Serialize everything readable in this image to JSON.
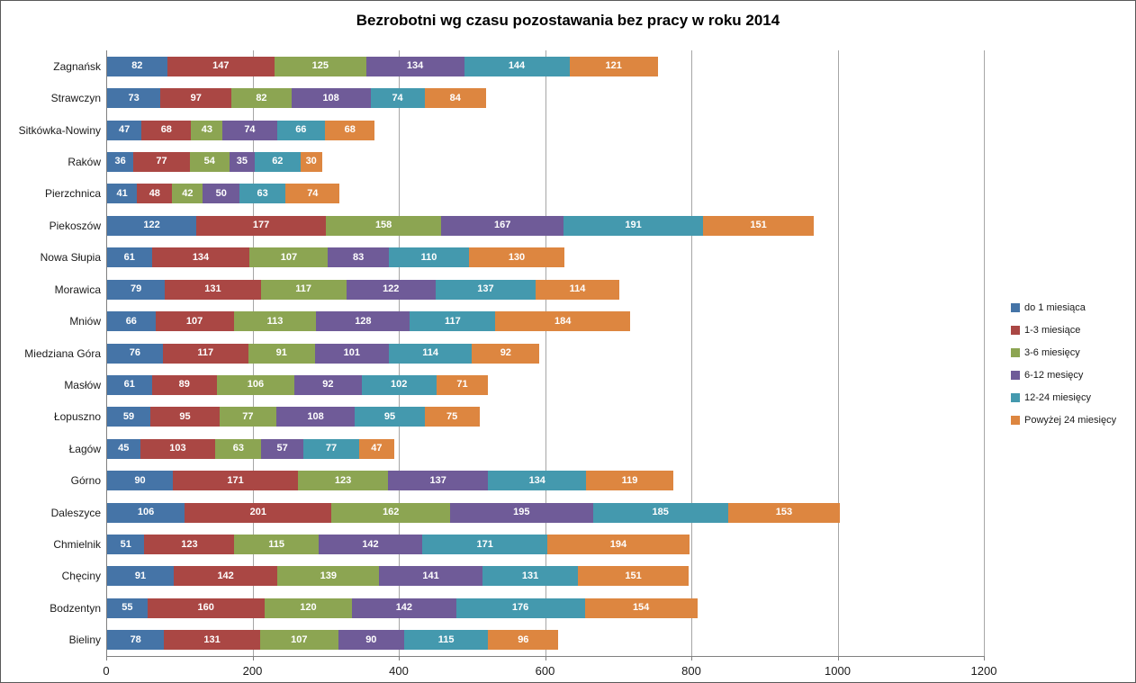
{
  "chart_data": {
    "type": "bar",
    "orientation": "horizontal",
    "stacked": true,
    "title": "Bezrobotni wg czasu pozostawania bez pracy w roku 2014",
    "categories": [
      "Zagnańsk",
      "Strawczyn",
      "Sitkówka-Nowiny",
      "Raków",
      "Pierzchnica",
      "Piekoszów",
      "Nowa Słupia",
      "Morawica",
      "Mniów",
      "Miedziana Góra",
      "Masłów",
      "Łopuszno",
      "Łagów",
      "Górno",
      "Daleszyce",
      "Chmielnik",
      "Chęciny",
      "Bodzentyn",
      "Bieliny"
    ],
    "series": [
      {
        "name": "do 1 miesiąca",
        "color": "#4574A7",
        "values": [
          82,
          73,
          47,
          36,
          41,
          122,
          61,
          79,
          66,
          76,
          61,
          59,
          45,
          90,
          106,
          51,
          91,
          55,
          78
        ]
      },
      {
        "name": "1-3 miesiące",
        "color": "#AA4744",
        "values": [
          147,
          97,
          68,
          77,
          48,
          177,
          134,
          131,
          107,
          117,
          89,
          95,
          103,
          171,
          201,
          123,
          142,
          160,
          131
        ]
      },
      {
        "name": "3-6 miesięcy",
        "color": "#8CA552",
        "values": [
          125,
          82,
          43,
          54,
          42,
          158,
          107,
          117,
          113,
          91,
          106,
          77,
          63,
          123,
          162,
          115,
          139,
          120,
          107
        ]
      },
      {
        "name": "6-12 mesięcy",
        "color": "#6F5B98",
        "values": [
          134,
          108,
          74,
          35,
          50,
          167,
          83,
          122,
          128,
          101,
          92,
          108,
          57,
          137,
          195,
          142,
          141,
          142,
          90
        ]
      },
      {
        "name": "12-24 miesięcy",
        "color": "#4499AE",
        "values": [
          144,
          74,
          66,
          62,
          63,
          191,
          110,
          137,
          117,
          114,
          102,
          95,
          77,
          134,
          185,
          171,
          131,
          176,
          115
        ]
      },
      {
        "name": "Powyżej 24 miesięcy",
        "color": "#DD8640",
        "values": [
          121,
          84,
          68,
          30,
          74,
          151,
          130,
          114,
          184,
          92,
          71,
          75,
          47,
          119,
          153,
          194,
          151,
          154,
          96
        ]
      }
    ],
    "x_axis": {
      "ticks": [
        0,
        200,
        400,
        600,
        800,
        1000,
        1200
      ],
      "min": 0,
      "max": 1200
    },
    "grid": true,
    "legend_position": "right",
    "value_labels": "inside-segments-white-bold",
    "colors": {
      "gridline": "#a6a6a6",
      "axis_line": "#808080",
      "background": "#ffffff",
      "text": "#1a1a1a"
    }
  }
}
